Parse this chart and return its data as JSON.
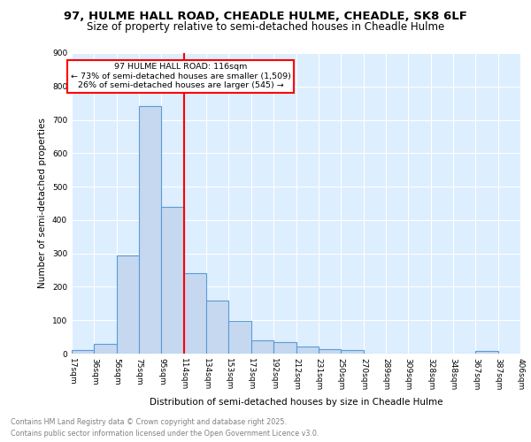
{
  "title1": "97, HULME HALL ROAD, CHEADLE HULME, CHEADLE, SK8 6LF",
  "title2": "Size of property relative to semi-detached houses in Cheadle Hulme",
  "xlabel": "Distribution of semi-detached houses by size in Cheadle Hulme",
  "ylabel": "Number of semi-detached properties",
  "bar_values": [
    10,
    30,
    295,
    740,
    440,
    240,
    158,
    98,
    40,
    35,
    20,
    13,
    10,
    0,
    0,
    0,
    0,
    0,
    8
  ],
  "bin_labels": [
    "17sqm",
    "36sqm",
    "56sqm",
    "75sqm",
    "95sqm",
    "114sqm",
    "134sqm",
    "153sqm",
    "173sqm",
    "192sqm",
    "212sqm",
    "231sqm",
    "250sqm",
    "270sqm",
    "289sqm",
    "309sqm",
    "328sqm",
    "348sqm",
    "367sqm",
    "387sqm",
    "406sqm"
  ],
  "bar_color": "#c5d8f0",
  "bar_edge_color": "#5b9bd5",
  "vline_x": 5,
  "vline_color": "red",
  "annotation_title": "97 HULME HALL ROAD: 116sqm",
  "annotation_line1": "← 73% of semi-detached houses are smaller (1,509)",
  "annotation_line2": "26% of semi-detached houses are larger (545) →",
  "ylim": [
    0,
    900
  ],
  "yticks": [
    0,
    100,
    200,
    300,
    400,
    500,
    600,
    700,
    800,
    900
  ],
  "footer1": "Contains HM Land Registry data © Crown copyright and database right 2025.",
  "footer2": "Contains public sector information licensed under the Open Government Licence v3.0.",
  "bg_color": "#ddeeff",
  "fig_bg": "#ffffff"
}
